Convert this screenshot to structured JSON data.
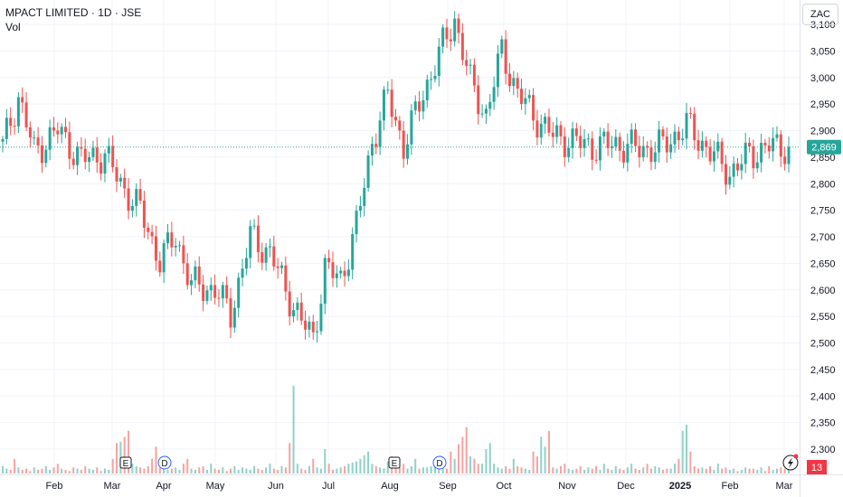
{
  "header": {
    "title": "MPACT LIMITED · 1D · JSE",
    "volume_label": "Vol",
    "currency": "ZAC"
  },
  "last_price": {
    "value": "2,869",
    "color": "#26a69a"
  },
  "badge": {
    "value": "13",
    "color": "#f23645"
  },
  "colors": {
    "up": "#26a69a",
    "down": "#ef5350",
    "vol_up": "#8fd1c8",
    "vol_down": "#f5a3a0"
  },
  "chart_data": {
    "type": "candlestick",
    "ylim": [
      2275,
      3125
    ],
    "yticks": [
      2300,
      2350,
      2400,
      2450,
      2500,
      2550,
      2600,
      2650,
      2700,
      2750,
      2800,
      2850,
      2900,
      2950,
      3000,
      3050,
      3100
    ],
    "ytick_labels": [
      "2,300",
      "2,350",
      "2,400",
      "2,450",
      "2,500",
      "2,550",
      "2,600",
      "2,650",
      "2,700",
      "2,750",
      "2,800",
      "2,850",
      "2,900",
      "2,950",
      "3,000",
      "3,050",
      "3,100"
    ],
    "xticks": [
      "Feb",
      "Mar",
      "Apr",
      "May",
      "Jun",
      "Jul",
      "Aug",
      "Sep",
      "Oct",
      "Nov",
      "Dec",
      "2025",
      "Feb",
      "Mar"
    ],
    "events": [
      {
        "label": "E",
        "shape": "square",
        "month_index": 2
      },
      {
        "label": "D",
        "shape": "circle",
        "month_index": 3
      },
      {
        "label": "E",
        "shape": "square",
        "month_index": 7
      },
      {
        "label": "D",
        "shape": "circle",
        "month_index": 8
      }
    ],
    "grid": true,
    "last_value": 2869,
    "anchors": [
      [
        0,
        2870
      ],
      [
        4,
        2965
      ],
      [
        8,
        2860
      ],
      [
        14,
        2900
      ],
      [
        20,
        2845
      ],
      [
        26,
        2855
      ],
      [
        30,
        2800
      ],
      [
        35,
        2750
      ],
      [
        40,
        2655
      ],
      [
        44,
        2700
      ],
      [
        48,
        2610
      ],
      [
        54,
        2600
      ],
      [
        58,
        2555
      ],
      [
        63,
        2700
      ],
      [
        68,
        2670
      ],
      [
        72,
        2600
      ],
      [
        76,
        2540
      ],
      [
        79,
        2510
      ],
      [
        82,
        2640
      ],
      [
        86,
        2620
      ],
      [
        90,
        2720
      ],
      [
        94,
        2880
      ],
      [
        98,
        2965
      ],
      [
        102,
        2870
      ],
      [
        107,
        2970
      ],
      [
        112,
        3060
      ],
      [
        115,
        3110
      ],
      [
        119,
        2990
      ],
      [
        123,
        2930
      ],
      [
        127,
        3050
      ],
      [
        131,
        2970
      ],
      [
        135,
        2930
      ],
      [
        140,
        2890
      ],
      [
        145,
        2880
      ],
      [
        150,
        2870
      ],
      [
        156,
        2875
      ],
      [
        162,
        2865
      ],
      [
        168,
        2870
      ],
      [
        174,
        2910
      ],
      [
        180,
        2860
      ],
      [
        185,
        2820
      ],
      [
        190,
        2855
      ],
      [
        195,
        2870
      ],
      [
        200,
        2869
      ]
    ],
    "volumes": [
      6,
      4,
      3,
      12,
      5,
      3,
      4,
      2,
      5,
      3,
      4,
      6,
      3,
      5,
      8,
      4,
      3,
      2,
      5,
      4,
      3,
      6,
      4,
      3,
      5,
      2,
      4,
      3,
      12,
      25,
      26,
      30,
      35,
      8,
      6,
      5,
      4,
      6,
      12,
      22,
      5,
      4,
      3,
      4,
      5,
      3,
      8,
      12,
      4,
      3,
      5,
      6,
      3,
      8,
      4,
      3,
      5,
      2,
      4,
      6,
      3,
      5,
      4,
      3,
      6,
      4,
      3,
      5,
      8,
      4,
      3,
      6,
      5,
      25,
      72,
      8,
      4,
      3,
      6,
      12,
      5,
      4,
      20,
      8,
      3,
      4,
      5,
      6,
      8,
      9,
      10,
      12,
      15,
      18,
      8,
      6,
      5,
      4,
      10,
      14,
      6,
      5,
      8,
      4,
      6,
      12,
      4,
      5,
      5,
      6,
      8,
      7,
      6,
      4,
      18,
      12,
      24,
      30,
      38,
      14,
      12,
      8,
      8,
      20,
      25,
      8,
      5,
      4,
      6,
      4,
      12,
      6,
      5,
      4,
      3,
      18,
      14,
      30,
      22,
      35,
      5,
      4,
      6,
      8,
      4,
      3,
      4,
      6,
      3,
      5,
      4,
      6,
      3,
      8,
      4,
      3,
      6,
      4,
      3,
      5,
      8,
      4,
      3,
      5,
      8,
      4,
      6,
      5,
      3,
      4,
      4,
      8,
      12,
      35,
      40,
      18,
      6,
      4,
      5,
      4,
      6,
      3,
      8,
      4,
      5,
      3,
      4,
      2,
      3,
      5,
      4,
      4,
      3,
      5,
      2,
      6,
      3,
      4,
      5,
      4
    ]
  }
}
